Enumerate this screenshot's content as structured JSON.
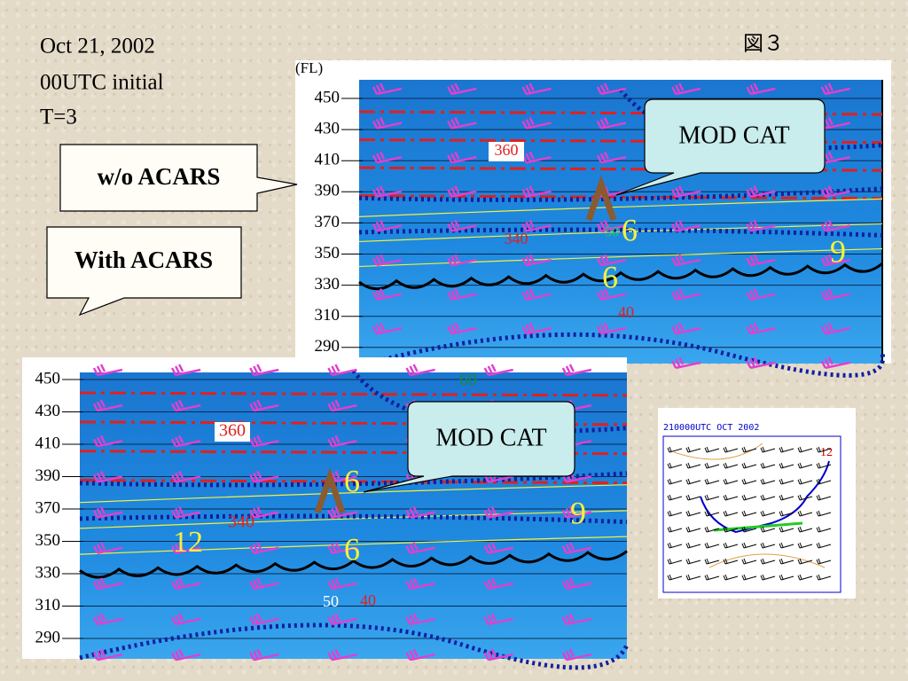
{
  "header": {
    "date": "Oct 21, 2002",
    "run": "00UTC initial",
    "step": "T=3",
    "figure": "図３"
  },
  "callouts": {
    "without": "w/o ACARS",
    "with": "With ACARS",
    "cat_top": "MOD CAT",
    "cat_bottom": "MOD CAT"
  },
  "panel_top": {
    "axis_label": "(FL)",
    "levels": [
      "450",
      "430",
      "410",
      "390",
      "370",
      "350",
      "330",
      "310",
      "290"
    ],
    "labels": [
      "360",
      "340",
      "6",
      "6",
      "9",
      "40",
      "50"
    ]
  },
  "panel_bottom": {
    "levels": [
      "450",
      "430",
      "410",
      "390",
      "370",
      "350",
      "330",
      "310",
      "290"
    ],
    "labels": [
      "60",
      "360",
      "340",
      "6",
      "6",
      "12",
      "9",
      "50",
      "40"
    ]
  },
  "inset": {
    "title": "210000UTC OCT 2002",
    "label": "12"
  }
}
